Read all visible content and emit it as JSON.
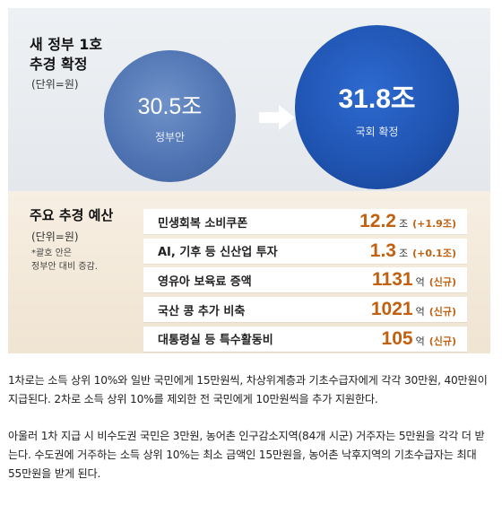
{
  "top": {
    "title_line1": "새 정부 1호",
    "title_line2": "추경 확정",
    "unit": "(단위=원)",
    "government": {
      "amount": "30.5조",
      "label": "정부안"
    },
    "assembly": {
      "amount": "31.8조",
      "label": "국회 확정"
    }
  },
  "bottom": {
    "title": "주요 추경 예산",
    "unit": "(단위=원)",
    "note_line1": "*괄호 안은",
    "note_line2": "정부안 대비 증감.",
    "items": [
      {
        "label": "민생회복 소비쿠폰",
        "amount": "12.2",
        "unit": "조",
        "change": "(+1.9조)"
      },
      {
        "label": "AI, 기후 등 신산업 투자",
        "amount": "1.3",
        "unit": "조",
        "change": "(+0.1조)"
      },
      {
        "label": "영유아 보육료 증액",
        "amount": "1131",
        "unit": "억",
        "change": "(신규)"
      },
      {
        "label": "국산 콩 추가 비축",
        "amount": "1021",
        "unit": "억",
        "change": "(신규)"
      },
      {
        "label": "대통령실 등 특수활동비",
        "amount": "105",
        "unit": "억",
        "change": "(신규)"
      }
    ]
  },
  "article": {
    "paragraph1": "1차로는 소득 상위 10%와 일반 국민에게 15만원씩, 차상위계층과 기초수급자에게 각각 30만원, 40만원이 지급된다. 2차로 소득 상위 10%를 제외한 전 국민에게 10만원씩을 추가 지원한다.",
    "paragraph2": "아울러 1차 지급 시 비수도권 국민은 3만원, 농어촌 인구감소지역(84개 시군) 거주자는 5만원을 각각 더 받는다. 수도권에 거주하는 소득 상위 10%는 최소 금액인 15만원을, 농어촌 낙후지역의 기초수급자는 최대 55만원을 받게 된다."
  },
  "colors": {
    "government_circle": "#4e72b1",
    "assembly_circle": "#1f53b0",
    "amount_accent": "#c2600f"
  }
}
